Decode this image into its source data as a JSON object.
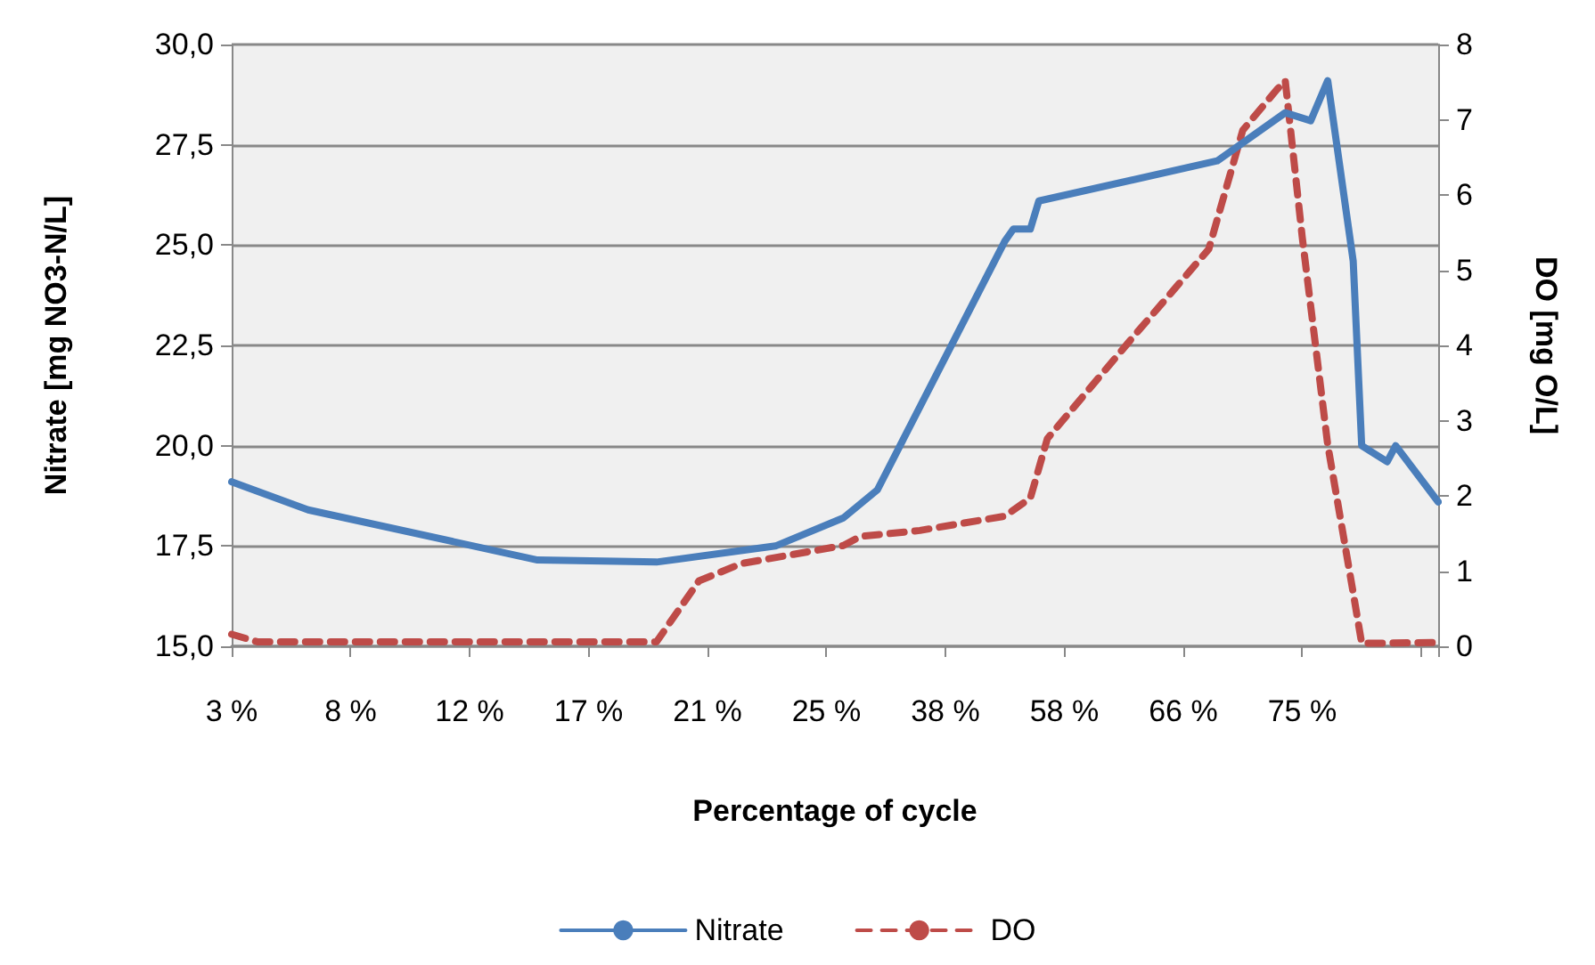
{
  "chart_data": {
    "type": "line",
    "xlabel": "Percentage of cycle",
    "ylabel": "Nitrate [mg NO3-N/L]",
    "y2label": "DO [mg O/L]",
    "categories": [
      "3 %",
      null,
      null,
      null,
      null,
      null,
      null,
      null,
      null,
      null,
      null,
      null,
      null,
      null,
      "8 %",
      null,
      null,
      null,
      null,
      null,
      null,
      null,
      null,
      null,
      null,
      null,
      null,
      null,
      "12 %",
      null,
      null,
      null,
      null,
      null,
      null,
      null,
      null,
      null,
      null,
      null,
      null,
      null,
      "17 %",
      null,
      null,
      null,
      null,
      null,
      null,
      null,
      null,
      null,
      null,
      null,
      null,
      null,
      "21 %",
      null,
      null,
      null,
      null,
      null,
      null,
      null,
      null,
      null,
      null,
      null,
      null,
      null,
      "25 %",
      null,
      null,
      null,
      null,
      null,
      null,
      null,
      null,
      null,
      null,
      null,
      null,
      null,
      "38 %",
      null,
      null,
      null,
      null,
      null,
      null,
      null,
      null,
      null,
      null,
      null,
      null,
      null,
      "58 %",
      null,
      null,
      null,
      null,
      null,
      null,
      null,
      null,
      null,
      null,
      null,
      null,
      null,
      "66 %",
      null,
      null,
      null,
      null,
      null,
      null,
      null,
      null,
      null,
      null,
      null,
      null,
      null,
      "75 %",
      null,
      null,
      null,
      null,
      null,
      null,
      null,
      null,
      null,
      null,
      null,
      null,
      null,
      null,
      null,
      null
    ],
    "series": [
      {
        "name": "Nitrate",
        "color": "#4a7ebb",
        "line_style": "solid",
        "values": [
          19.1,
          null,
          null,
          null,
          null,
          null,
          null,
          null,
          null,
          18.4,
          null,
          null,
          null,
          null,
          null,
          null,
          null,
          null,
          null,
          null,
          null,
          null,
          null,
          null,
          null,
          null,
          null,
          null,
          null,
          null,
          null,
          null,
          null,
          null,
          null,
          null,
          17.15,
          null,
          null,
          null,
          null,
          null,
          null,
          null,
          null,
          null,
          null,
          null,
          null,
          null,
          17.1,
          null,
          null,
          null,
          null,
          null,
          null,
          null,
          null,
          null,
          null,
          null,
          null,
          null,
          17.5,
          null,
          null,
          null,
          null,
          null,
          null,
          null,
          18.2,
          null,
          null,
          null,
          18.9,
          null,
          null,
          null,
          null,
          null,
          null,
          null,
          null,
          null,
          null,
          null,
          null,
          null,
          null,
          25.1,
          25.4,
          null,
          25.4,
          26.1,
          null,
          null,
          null,
          null,
          null,
          null,
          null,
          null,
          null,
          null,
          null,
          null,
          null,
          null,
          null,
          null,
          null,
          null,
          null,
          null,
          27.1,
          null,
          null,
          null,
          null,
          null,
          null,
          null,
          28.3,
          null,
          null,
          28.1,
          null,
          29.1,
          null,
          null,
          24.6,
          20.0,
          null,
          null,
          19.6,
          20.0,
          null,
          null,
          null,
          null,
          18.6
        ]
      },
      {
        "name": "DO",
        "color": "#be4b48",
        "line_style": "dashed",
        "axis": "y2",
        "values": [
          0.16,
          null,
          null,
          0.06,
          null,
          null,
          null,
          null,
          null,
          null,
          null,
          null,
          null,
          null,
          null,
          null,
          null,
          null,
          null,
          null,
          null,
          null,
          null,
          null,
          null,
          null,
          null,
          null,
          null,
          null,
          null,
          null,
          null,
          null,
          null,
          null,
          null,
          null,
          null,
          null,
          null,
          null,
          null,
          null,
          null,
          null,
          null,
          null,
          null,
          null,
          0.06,
          null,
          null,
          null,
          null,
          0.87,
          null,
          null,
          null,
          null,
          1.1,
          null,
          null,
          null,
          null,
          null,
          null,
          null,
          null,
          null,
          null,
          null,
          1.34,
          null,
          1.46,
          null,
          null,
          null,
          null,
          null,
          null,
          1.54,
          null,
          null,
          null,
          null,
          null,
          null,
          null,
          null,
          null,
          1.73,
          null,
          null,
          1.97,
          null,
          2.76,
          null,
          null,
          null,
          null,
          null,
          null,
          null,
          null,
          null,
          4.1,
          null,
          null,
          null,
          null,
          null,
          null,
          null,
          null,
          5.28,
          null,
          null,
          null,
          6.86,
          null,
          null,
          null,
          7.4,
          7.52,
          null,
          5.44,
          null,
          null,
          2.68,
          null,
          null,
          0.71,
          0.04,
          null,
          null,
          null,
          null,
          null,
          null,
          null,
          null,
          0.05
        ]
      }
    ],
    "ylim": [
      15,
      30
    ],
    "yticks": [
      {
        "value": 15,
        "label": "15,0"
      },
      {
        "value": 17.5,
        "label": "17,5"
      },
      {
        "value": 20,
        "label": "20,0"
      },
      {
        "value": 22.5,
        "label": "22,5"
      },
      {
        "value": 25,
        "label": "25,0"
      },
      {
        "value": 27.5,
        "label": "27,5"
      },
      {
        "value": 30,
        "label": "30,0"
      }
    ],
    "y2lim": [
      0,
      8
    ],
    "y2ticks": [
      0,
      1,
      2,
      3,
      4,
      5,
      6,
      7,
      8
    ],
    "grid": "y",
    "legend": "bottom",
    "marker": "none"
  }
}
